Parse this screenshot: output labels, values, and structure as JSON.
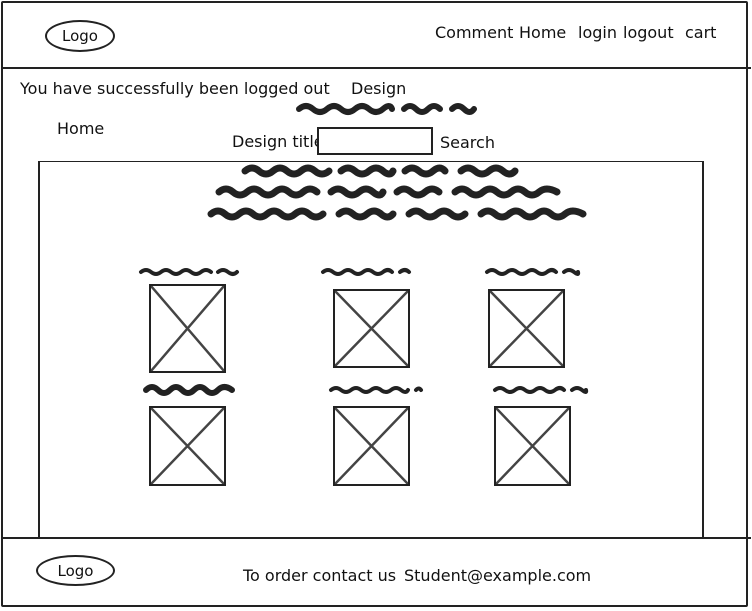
{
  "header": {
    "logo_label": "Logo",
    "nav": [
      {
        "id": "comment",
        "label": "Comment"
      },
      {
        "id": "home",
        "label": "Home"
      },
      {
        "id": "login",
        "label": "login"
      },
      {
        "id": "logout",
        "label": "logout"
      },
      {
        "id": "cart",
        "label": "cart"
      }
    ]
  },
  "status": {
    "message": "You have successfully been logged out"
  },
  "page": {
    "section_title": "Design",
    "home_link": "Home"
  },
  "search": {
    "label": "Design title",
    "value": "",
    "button_label": "Search"
  },
  "gallery": {
    "item_count": 6,
    "image_icon": "image-placeholder-icon"
  },
  "footer": {
    "logo_label": "Logo",
    "contact_prefix": "To order contact us",
    "contact_email": "Student@example.com"
  }
}
